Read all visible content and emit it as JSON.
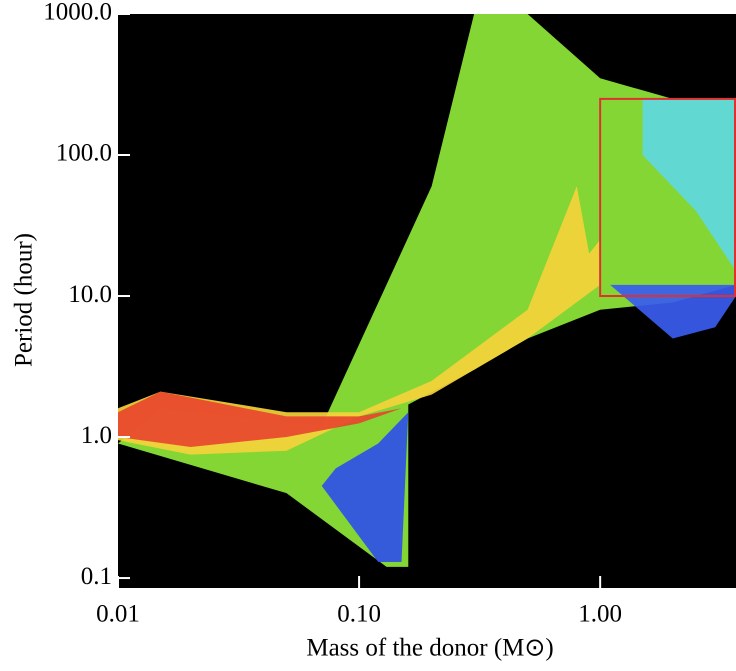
{
  "chart_data": {
    "type": "area",
    "xlabel": "Mass of the donor (M⊙)",
    "ylabel": "Period (hour)",
    "xscale": "log",
    "yscale": "log",
    "xlim": [
      0.01,
      3.66
    ],
    "ylim": [
      0.085,
      1000
    ],
    "xticks": [
      0.01,
      {
        "value": 0.1,
        "label": "0.10"
      },
      {
        "value": 1,
        "label": "1.00"
      }
    ],
    "yticks": [
      {
        "value": 0.1,
        "label": "0.1"
      },
      {
        "value": 1,
        "label": "1.0"
      },
      {
        "value": 10,
        "label": "10.0"
      },
      {
        "value": 100,
        "label": "100.0"
      },
      {
        "value": 1000,
        "label": "1000.0"
      }
    ],
    "background": "#000000",
    "regions": [
      {
        "color": "#8fe83a",
        "x": [
          0.01,
          0.015,
          0.07,
          0.2,
          0.3,
          0.5,
          1.0,
          2.0,
          3.66,
          3.66,
          2.0,
          1.0,
          0.5,
          0.3,
          0.16,
          0.16,
          0.13,
          0.05,
          0.01
        ],
        "y": [
          0.9,
          1.6,
          1.2,
          60,
          1000,
          1000,
          350,
          250,
          250,
          12,
          9,
          8,
          5,
          3,
          1.7,
          0.12,
          0.12,
          0.4,
          0.9
        ]
      },
      {
        "color": "#5fd8e0",
        "x": [
          1.5,
          3.66,
          3.66,
          2.5,
          1.5
        ],
        "y": [
          250,
          250,
          15,
          40,
          100
        ]
      },
      {
        "color": "#3050e8",
        "x": [
          0.07,
          0.12,
          0.15,
          0.16,
          0.12,
          0.08
        ],
        "y": [
          0.45,
          0.13,
          0.13,
          1.5,
          0.9,
          0.6
        ]
      },
      {
        "color": "#3a5cf0",
        "x": [
          1.1,
          2.0,
          3.0,
          3.66,
          3.66
        ],
        "y": [
          12,
          5,
          6,
          10,
          12
        ]
      },
      {
        "color": "#f5d23a",
        "x": [
          0.01,
          0.015,
          0.05,
          0.1,
          0.2,
          0.5,
          0.8,
          0.9,
          1.0,
          1.0,
          0.5,
          0.2,
          0.1,
          0.05,
          0.02,
          0.01
        ],
        "y": [
          1.6,
          2.1,
          1.5,
          1.5,
          2.5,
          8,
          60,
          20,
          25,
          12,
          5,
          2,
          1.4,
          0.8,
          0.75,
          0.95
        ]
      },
      {
        "color": "#e8462e",
        "x": [
          0.01,
          0.015,
          0.05,
          0.1,
          0.15,
          0.1,
          0.05,
          0.02,
          0.01
        ],
        "y": [
          1.5,
          2.1,
          1.4,
          1.4,
          1.6,
          1.25,
          1.0,
          0.85,
          1.0
        ]
      }
    ],
    "highlight": {
      "color": "#e03030",
      "x": [
        1.0,
        3.66
      ],
      "y": [
        10,
        250
      ]
    }
  }
}
